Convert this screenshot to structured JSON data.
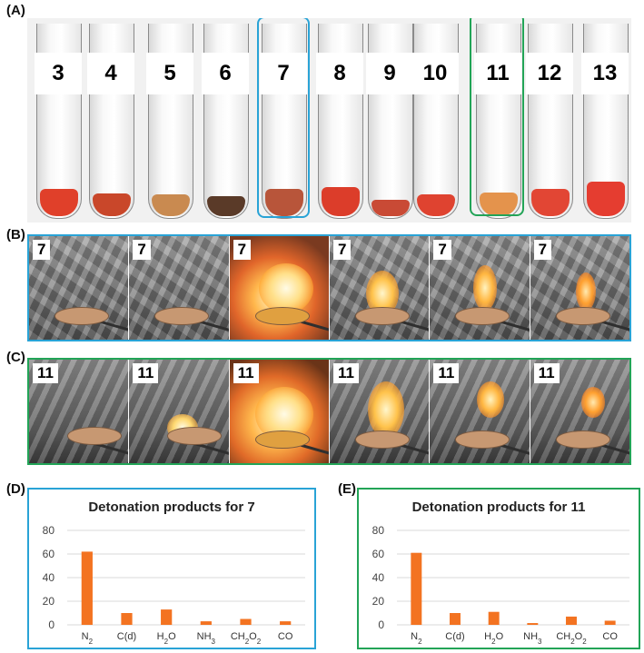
{
  "panel_labels": {
    "a": "(A)",
    "b": "(B)",
    "c": "(C)",
    "d": "(D)",
    "e": "(E)"
  },
  "tubes": [
    {
      "label": "3",
      "powder": "#e0402a"
    },
    {
      "label": "4",
      "powder": "#c9472a"
    },
    {
      "label": "5",
      "powder": "#c98a50"
    },
    {
      "label": "6",
      "powder": "#5a3a28"
    },
    {
      "label": "7",
      "powder": "#b8553a"
    },
    {
      "label": "8",
      "powder": "#dc3d2a"
    },
    {
      "label": "9",
      "powder": "#c94a35"
    },
    {
      "label": "10",
      "powder": "#df4330"
    },
    {
      "label": "11",
      "powder": "#e4934c"
    },
    {
      "label": "12",
      "powder": "#e24634"
    },
    {
      "label": "13",
      "powder": "#e53d30"
    }
  ],
  "highlight_colors": {
    "compound7": "#29a3d6",
    "compound11": "#22a457"
  },
  "sequence_b": {
    "labels": [
      "7",
      "7",
      "7",
      "7",
      "7",
      "7"
    ]
  },
  "sequence_c": {
    "labels": [
      "11",
      "11",
      "11",
      "11",
      "11",
      "11"
    ]
  },
  "chart_data": [
    {
      "type": "bar",
      "title": "Detonation products for 7",
      "categories": [
        "N2",
        "C(d)",
        "H2O",
        "NH3",
        "CH2O2",
        "CO"
      ],
      "values": [
        62,
        10,
        13,
        3,
        5,
        3
      ],
      "ylim": [
        0,
        80
      ],
      "yticks": [
        0,
        20,
        40,
        60,
        80
      ],
      "bar_color": "#f37321",
      "grid": true,
      "border_color": "#29a3d6"
    },
    {
      "type": "bar",
      "title": "Detonation products for 11",
      "categories": [
        "N2",
        "C(d)",
        "H2O",
        "NH3",
        "CH2O2",
        "CO"
      ],
      "values": [
        61,
        10,
        11,
        1.5,
        7,
        3.5
      ],
      "ylim": [
        0,
        80
      ],
      "yticks": [
        0,
        20,
        40,
        60,
        80
      ],
      "bar_color": "#f37321",
      "grid": true,
      "border_color": "#22a457"
    }
  ]
}
